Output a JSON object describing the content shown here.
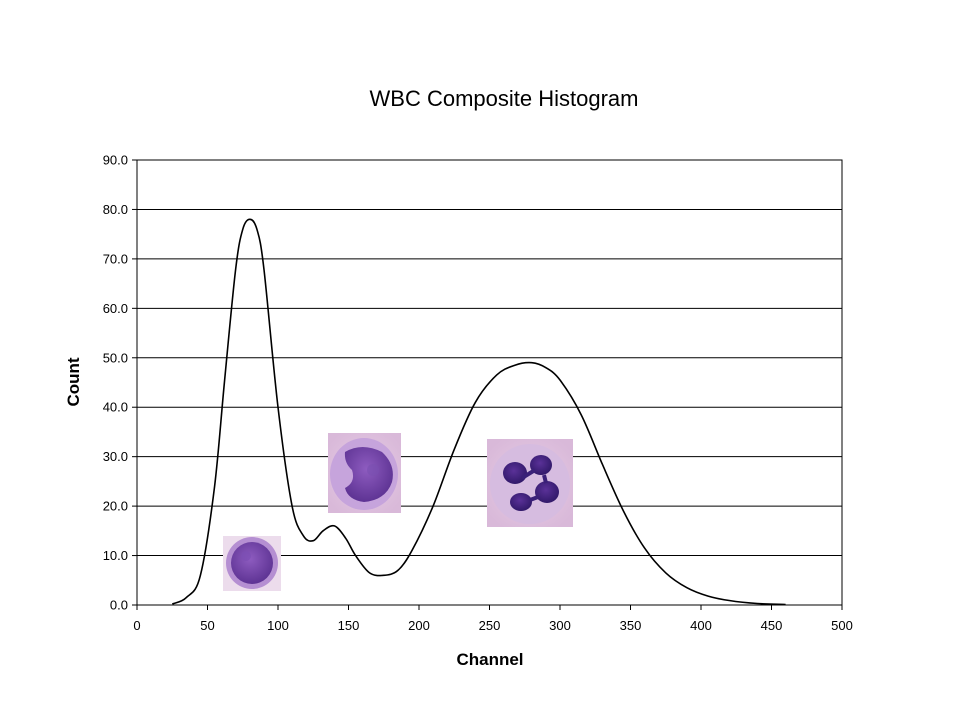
{
  "chart_data": {
    "type": "line",
    "title": "WBC Composite Histogram",
    "xlabel": "Channel",
    "ylabel": "Count",
    "xlim": [
      0,
      500
    ],
    "ylim": [
      0,
      90
    ],
    "x_ticks": [
      "0",
      "50",
      "100",
      "150",
      "200",
      "250",
      "300",
      "350",
      "400",
      "450",
      "500"
    ],
    "y_ticks": [
      "0.0",
      "10.0",
      "20.0",
      "30.0",
      "40.0",
      "50.0",
      "60.0",
      "70.0",
      "80.0",
      "90.0"
    ],
    "grid": "horizontal",
    "legend": "none",
    "series": [
      {
        "x": [
          25,
          35,
          45,
          55,
          62,
          70,
          75,
          80,
          85,
          90,
          100,
          110,
          118,
          125,
          132,
          140,
          148,
          155,
          165,
          175,
          185,
          195,
          210,
          225,
          240,
          255,
          268,
          280,
          290,
          300,
          315,
          330,
          345,
          360,
          375,
          390,
          405,
          420,
          440,
          460
        ],
        "y": [
          0.2,
          1.5,
          6,
          24,
          45,
          68,
          76,
          78,
          76,
          68,
          40,
          20,
          14,
          13,
          15,
          16,
          13.5,
          10,
          6.5,
          6,
          7,
          11,
          20,
          31.5,
          41,
          46.5,
          48.5,
          49,
          48,
          45.5,
          38.5,
          28.5,
          19,
          11.5,
          6.5,
          3.5,
          1.8,
          0.9,
          0.3,
          0.1
        ]
      }
    ],
    "annotations": [
      {
        "kind": "cell-image",
        "icon": "lymphocyte-cell-icon"
      },
      {
        "kind": "cell-image",
        "icon": "monocyte-cell-icon"
      },
      {
        "kind": "cell-image",
        "icon": "neutrophil-cell-icon"
      }
    ],
    "colors": {
      "line": "#000000",
      "grid": "#000000",
      "background": "#ffffff"
    }
  }
}
